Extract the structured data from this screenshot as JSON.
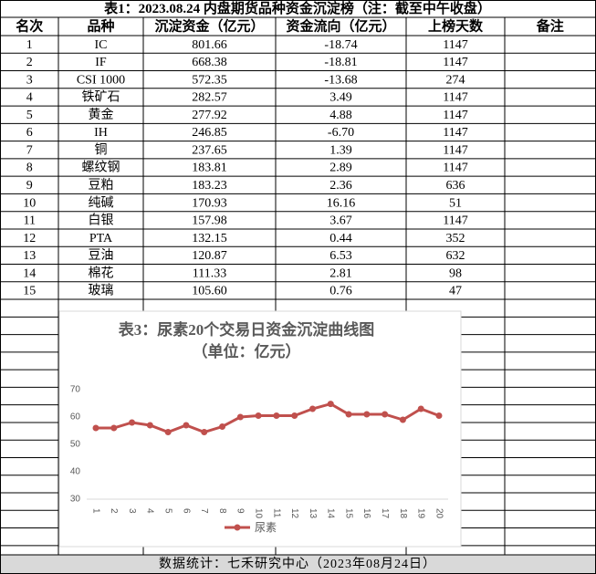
{
  "title": "表1：2023.08.24 内盘期货品种资金沉淀榜（注：截至中午收盘）",
  "table": {
    "header": [
      "名次",
      "品种",
      "沉淀资金（亿元）",
      "资金流向（亿元）",
      "上榜天数",
      "备注"
    ],
    "rows": [
      [
        "1",
        "IC",
        "801.66",
        "-18.74",
        "1147"
      ],
      [
        "2",
        "IF",
        "668.38",
        "-18.81",
        "1147"
      ],
      [
        "3",
        "CSI 1000",
        "572.35",
        "-13.68",
        "274"
      ],
      [
        "4",
        "铁矿石",
        "282.57",
        "3.49",
        "1147"
      ],
      [
        "5",
        "黄金",
        "277.92",
        "4.88",
        "1147"
      ],
      [
        "6",
        "IH",
        "246.85",
        "-6.70",
        "1147"
      ],
      [
        "7",
        "铜",
        "237.65",
        "1.39",
        "1147"
      ],
      [
        "8",
        "螺纹钢",
        "183.81",
        "2.89",
        "1147"
      ],
      [
        "9",
        "豆粕",
        "183.23",
        "2.36",
        "636"
      ],
      [
        "10",
        "纯碱",
        "170.93",
        "16.16",
        "51"
      ],
      [
        "11",
        "白银",
        "157.98",
        "3.67",
        "1147"
      ],
      [
        "12",
        "PTA",
        "132.15",
        "0.44",
        "352"
      ],
      [
        "13",
        "豆油",
        "120.87",
        "6.53",
        "632"
      ],
      [
        "14",
        "棉花",
        "111.33",
        "2.81",
        "98"
      ],
      [
        "15",
        "玻璃",
        "105.60",
        "0.76",
        "47"
      ]
    ]
  },
  "chart_data": {
    "type": "line",
    "title": "表3：尿素20个交易日资金沉淀曲线图",
    "subtitle": "（单位：亿元）",
    "categories": [
      "1",
      "2",
      "3",
      "4",
      "5",
      "6",
      "7",
      "8",
      "9",
      "10",
      "11",
      "12",
      "13",
      "14",
      "15",
      "16",
      "17",
      "18",
      "19",
      "20"
    ],
    "series": [
      {
        "name": "尿素",
        "color": "#c0504d",
        "values": [
          56,
          56,
          58,
          57,
          54.5,
          57,
          54.5,
          56.5,
          60,
          60.5,
          60.5,
          60.5,
          63,
          64.8,
          61,
          61,
          61,
          59,
          63,
          60.5
        ]
      }
    ],
    "ylim": [
      30,
      70
    ],
    "yticks": [
      30,
      40,
      50,
      60,
      70
    ],
    "grid": false,
    "legend": "bottom"
  },
  "footer": "数据统计：七禾研究中心（2023年08月24日）"
}
